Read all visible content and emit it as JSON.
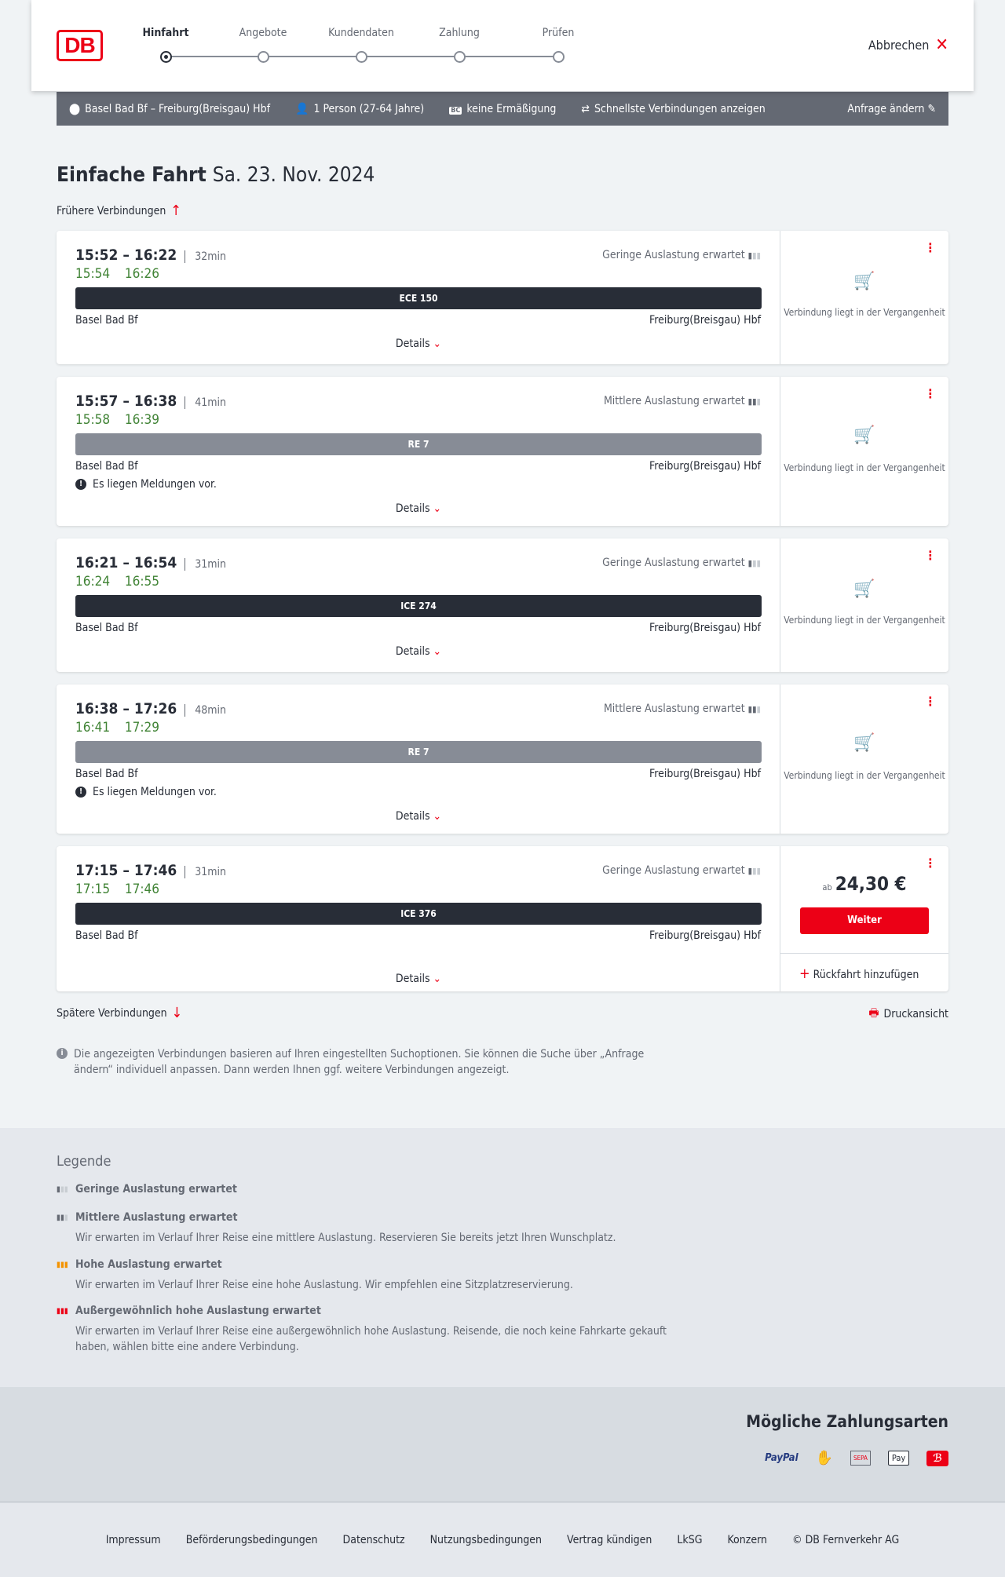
{
  "header": {
    "steps": [
      "Hinfahrt",
      "Angebote",
      "Kundendaten",
      "Zahlung",
      "Prüfen"
    ],
    "active_step": 0,
    "cancel": "Abbrechen"
  },
  "search": {
    "route": "Basel Bad Bf – Freiburg(Breisgau) Hbf",
    "passengers": "1 Person (27-64 Jahre)",
    "discount": "keine Ermäßigung",
    "option": "Schnellste Verbindungen anzeigen",
    "edit": "Anfrage ändern"
  },
  "page": {
    "title": "Einfache Fahrt",
    "date": "Sa. 23. Nov. 2024",
    "earlier": "Frühere Verbindungen",
    "later": "Spätere Verbindungen",
    "print": "Druckansicht",
    "info": "Die angezeigten Verbindungen basieren auf Ihren eingestellten Suchoptionen. Sie können die Suche über „Anfrage ändern“ individuell anpassen. Dann werden Ihnen ggf. weitere Verbindungen angezeigt."
  },
  "connections": [
    {
      "times": "15:52 – 16:22",
      "duration": "32min",
      "realtime": "15:54 16:26",
      "load": "Geringe Auslastung erwartet",
      "train": "ECE 150",
      "train_color": "#282d37",
      "from": "Basel Bad Bf",
      "to": "Freiburg(Breisgau) Hbf",
      "details": "Details",
      "status": "Verbindung liegt in der Vergangenheit"
    },
    {
      "times": "15:57 – 16:38",
      "duration": "41min",
      "realtime": "15:58 16:39",
      "load": "Mittlere Auslastung erwartet",
      "train": "RE 7",
      "train_color": "#878c96",
      "from": "Basel Bad Bf",
      "to": "Freiburg(Breisgau) Hbf",
      "message": "Es liegen Meldungen vor.",
      "details": "Details",
      "status": "Verbindung liegt in der Vergangenheit"
    },
    {
      "times": "16:21 – 16:54",
      "duration": "31min",
      "realtime": "16:24 16:55",
      "load": "Geringe Auslastung erwartet",
      "train": "ICE 274",
      "train_color": "#282d37",
      "from": "Basel Bad Bf",
      "to": "Freiburg(Breisgau) Hbf",
      "details": "Details",
      "status": "Verbindung liegt in der Vergangenheit"
    },
    {
      "times": "16:38 – 17:26",
      "duration": "48min",
      "realtime": "16:41 17:29",
      "load": "Mittlere Auslastung erwartet",
      "train": "RE 7",
      "train_color": "#878c96",
      "from": "Basel Bad Bf",
      "to": "Freiburg(Breisgau) Hbf",
      "message": "Es liegen Meldungen vor.",
      "details": "Details",
      "status": "Verbindung liegt in der Vergangenheit"
    },
    {
      "times": "17:15 – 17:46",
      "duration": "31min",
      "realtime": "17:15 17:46",
      "load": "Geringe Auslastung erwartet",
      "train": "ICE 376",
      "train_color": "#282d37",
      "from": "Basel Bad Bf",
      "to": "Freiburg(Breisgau) Hbf",
      "details": "Details",
      "price_prefix": "ab",
      "price": "24,30 €",
      "button": "Weiter",
      "return": "Rückfahrt hinzufügen"
    }
  ],
  "legend": {
    "title": "Legende",
    "items": [
      {
        "title": "Geringe Auslastung erwartet",
        "text": ""
      },
      {
        "title": "Mittlere Auslastung erwartet",
        "text": "Wir erwarten im Verlauf Ihrer Reise eine mittlere Auslastung. Reservieren Sie bereits jetzt Ihren Wunschplatz."
      },
      {
        "title": "Hohe Auslastung erwartet",
        "text": "Wir erwarten im Verlauf Ihrer Reise eine hohe Auslastung. Wir empfehlen eine Sitzplatzreservierung."
      },
      {
        "title": "Außergewöhnlich hohe Auslastung erwartet",
        "text": "Wir erwarten im Verlauf Ihrer Reise eine außergewöhnlich hohe Auslastung. Reisende, die noch keine Fahrkarte gekauft haben, wählen bitte eine andere Verbindung."
      }
    ]
  },
  "payment": {
    "title": "Mögliche Zahlungsarten",
    "methods": [
      "PayPal",
      "credit-card",
      "SEPA",
      "Pay"
    ]
  },
  "footer": {
    "links": [
      "Impressum",
      "Beförderungsbedingungen",
      "Datenschutz",
      "Nutzungsbedingungen",
      "Vertrag kündigen",
      "LkSG",
      "Konzern",
      "© DB Fernverkehr AG"
    ]
  },
  "colors": {
    "brand": "#ec0016",
    "realtime": "#408335",
    "high_load": "#f39200"
  }
}
